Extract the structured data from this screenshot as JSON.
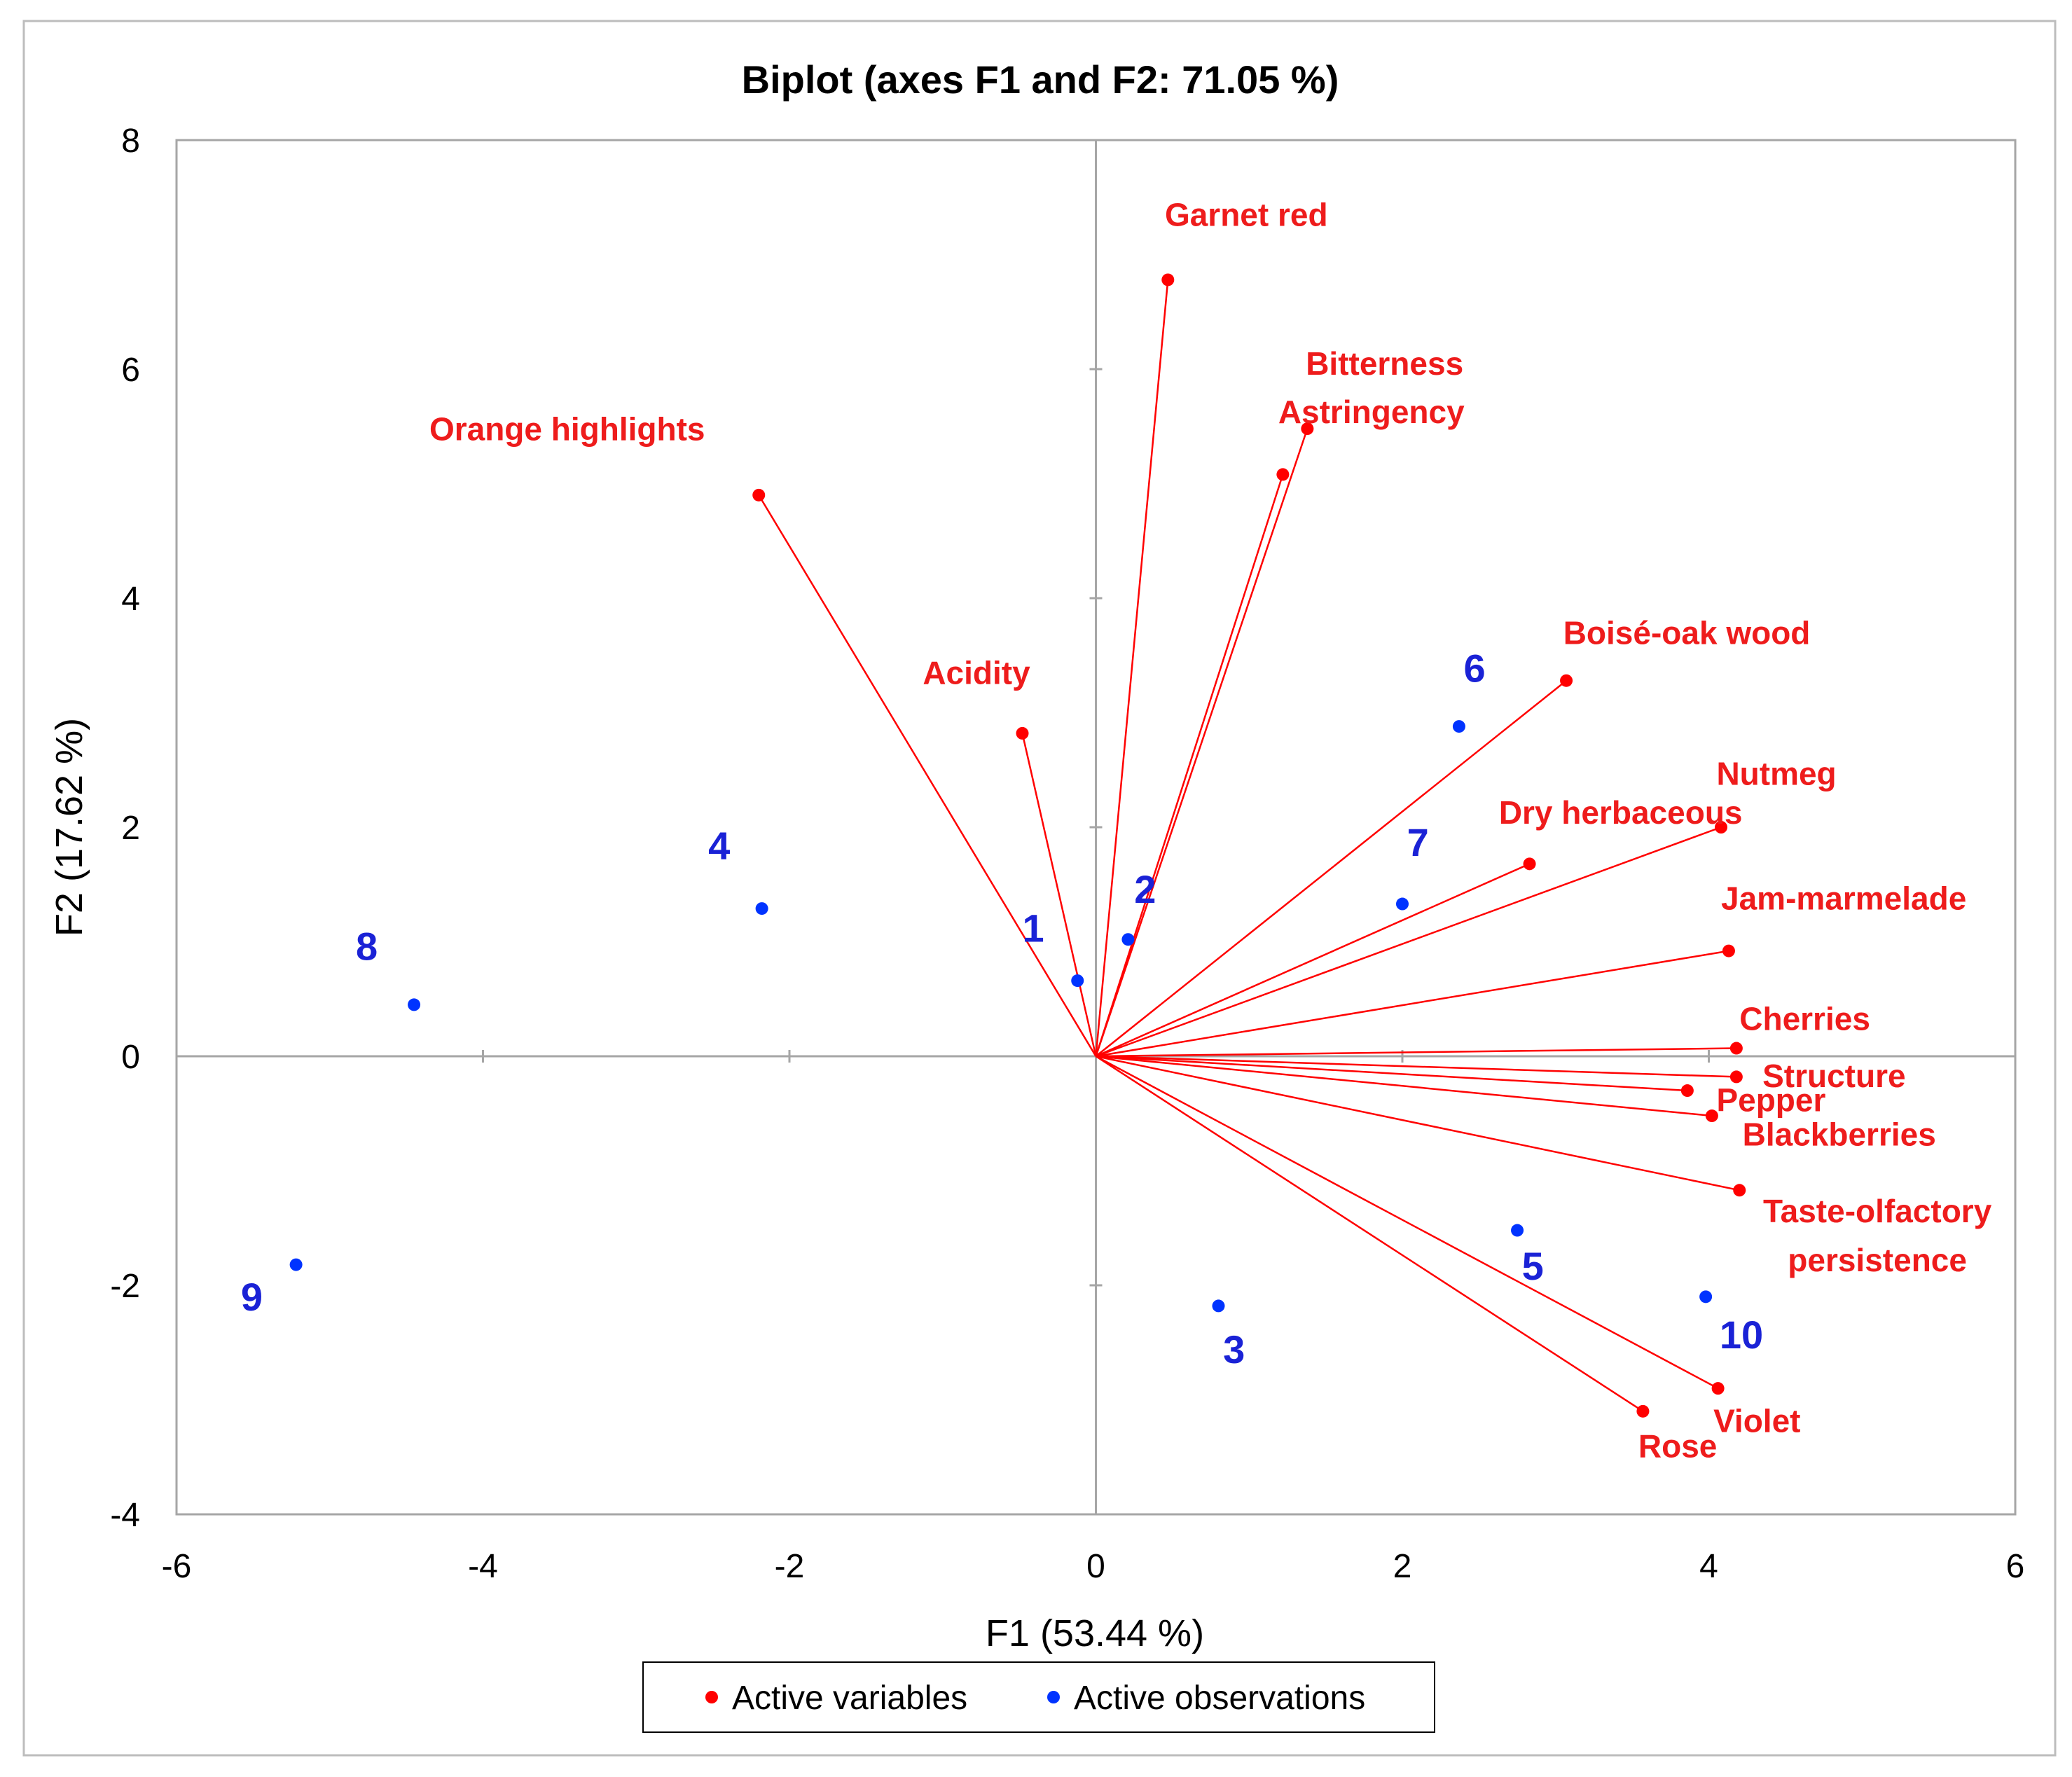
{
  "chart_data": {
    "type": "scatter",
    "title": "Biplot (axes F1 and F2: 71.05 %)",
    "xlabel": "F1 (53.44 %)",
    "ylabel": "F2 (17.62 %)",
    "xlim": [
      -6,
      6
    ],
    "ylim": [
      -4,
      8
    ],
    "xticks": [
      "-6",
      "-4",
      "-2",
      "0",
      "2",
      "4",
      "6"
    ],
    "yticks": [
      "-4",
      "-2",
      "0",
      "2",
      "4",
      "6",
      "8"
    ],
    "colors": {
      "variables": "#ff0000",
      "observations": "#0033ff",
      "label_variables": "#ee1c1c",
      "label_observations": "#1a22d6"
    },
    "legend": {
      "position": "bottom",
      "items": [
        {
          "label": "Active variables",
          "color": "#ff0000"
        },
        {
          "label": "Active observations",
          "color": "#0033ff"
        }
      ]
    },
    "variables": [
      {
        "name": "Garnet red",
        "lines": [
          "Garnet red"
        ],
        "x": 0.47,
        "y": 6.78,
        "lx": 0.45,
        "ly": 7.25,
        "anchor": "start"
      },
      {
        "name": "Bitterness",
        "lines": [
          "Bitterness"
        ],
        "x": 1.22,
        "y": 5.08,
        "lx": 1.37,
        "ly": 5.95,
        "anchor": "start"
      },
      {
        "name": "Astringency",
        "lines": [
          "Astringency"
        ],
        "x": 1.38,
        "y": 5.48,
        "lx": 1.19,
        "ly": 5.53,
        "anchor": "start"
      },
      {
        "name": "Orange highlights",
        "lines": [
          "Orange highlights"
        ],
        "x": -2.2,
        "y": 4.9,
        "lx": -4.35,
        "ly": 5.38,
        "anchor": "start"
      },
      {
        "name": "Acidity",
        "lines": [
          "Acidity"
        ],
        "x": -0.48,
        "y": 2.82,
        "lx": -1.13,
        "ly": 3.25,
        "anchor": "start"
      },
      {
        "name": "Boisé-oak wood",
        "lines": [
          "Boisé-oak wood"
        ],
        "x": 3.07,
        "y": 3.28,
        "lx": 3.05,
        "ly": 3.6,
        "anchor": "start"
      },
      {
        "name": "Nutmeg",
        "lines": [
          "Nutmeg"
        ],
        "x": 4.08,
        "y": 2.0,
        "lx": 4.05,
        "ly": 2.37,
        "anchor": "start"
      },
      {
        "name": "Dry herbaceous",
        "lines": [
          "Dry herbaceous"
        ],
        "x": 2.83,
        "y": 1.68,
        "lx": 2.63,
        "ly": 2.03,
        "anchor": "start"
      },
      {
        "name": "Jam-marmelade",
        "lines": [
          "Jam-marmelade"
        ],
        "x": 4.13,
        "y": 0.92,
        "lx": 4.08,
        "ly": 1.28,
        "anchor": "start"
      },
      {
        "name": "Cherries",
        "lines": [
          "Cherries"
        ],
        "x": 4.18,
        "y": 0.07,
        "lx": 4.2,
        "ly": 0.23,
        "anchor": "start"
      },
      {
        "name": "Structure",
        "lines": [
          "Structure"
        ],
        "x": 4.18,
        "y": -0.18,
        "lx": 4.35,
        "ly": -0.27,
        "anchor": "start"
      },
      {
        "name": "Pepper",
        "lines": [
          "Pepper"
        ],
        "x": 3.86,
        "y": -0.3,
        "lx": 4.05,
        "ly": -0.48,
        "anchor": "start"
      },
      {
        "name": "Blackberries",
        "lines": [
          "Blackberries"
        ],
        "x": 4.02,
        "y": -0.52,
        "lx": 4.22,
        "ly": -0.78,
        "anchor": "start"
      },
      {
        "name": "Taste-olfactory persistence",
        "lines": [
          "Taste-olfactory",
          "persistence"
        ],
        "x": 4.2,
        "y": -1.17,
        "lx": 5.1,
        "ly": -1.45,
        "anchor": "middle"
      },
      {
        "name": "Violet",
        "lines": [
          "Violet"
        ],
        "x": 4.06,
        "y": -2.9,
        "lx": 4.03,
        "ly": -3.28,
        "anchor": "start"
      },
      {
        "name": "Rose",
        "lines": [
          "Rose"
        ],
        "x": 3.57,
        "y": -3.1,
        "lx": 3.54,
        "ly": -3.5,
        "anchor": "start"
      }
    ],
    "observations": [
      {
        "label": "1",
        "x": -0.12,
        "y": 0.66,
        "lx": -0.48,
        "ly": 1.0
      },
      {
        "label": "2",
        "x": 0.21,
        "y": 1.02,
        "lx": 0.25,
        "ly": 1.34
      },
      {
        "label": "3",
        "x": 0.8,
        "y": -2.18,
        "lx": 0.83,
        "ly": -2.68
      },
      {
        "label": "4",
        "x": -2.18,
        "y": 1.29,
        "lx": -2.53,
        "ly": 1.72
      },
      {
        "label": "5",
        "x": 2.75,
        "y": -1.52,
        "lx": 2.78,
        "ly": -1.95
      },
      {
        "label": "6",
        "x": 2.37,
        "y": 2.88,
        "lx": 2.4,
        "ly": 3.27
      },
      {
        "label": "7",
        "x": 2.0,
        "y": 1.33,
        "lx": 2.03,
        "ly": 1.75
      },
      {
        "label": "8",
        "x": -4.45,
        "y": 0.45,
        "lx": -4.83,
        "ly": 0.84
      },
      {
        "label": "9",
        "x": -5.22,
        "y": -1.82,
        "lx": -5.58,
        "ly": -2.22
      },
      {
        "label": "10",
        "x": 3.98,
        "y": -2.1,
        "lx": 4.07,
        "ly": -2.55
      }
    ]
  }
}
